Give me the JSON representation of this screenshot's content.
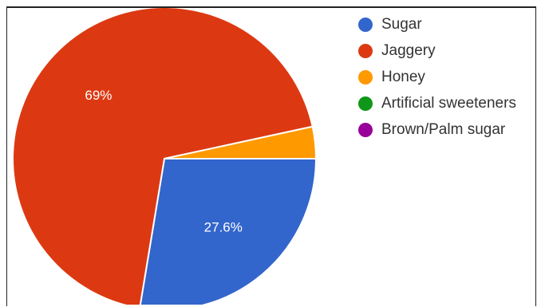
{
  "chart_data": {
    "type": "pie",
    "categories": [
      "Sugar",
      "Jaggery",
      "Honey",
      "Artificial sweeteners",
      "Brown/Palm sugar"
    ],
    "values": [
      27.6,
      69.0,
      3.4,
      0,
      0
    ],
    "data_labels": [
      "27.6%",
      "69%",
      "",
      "",
      ""
    ],
    "colors": [
      "#3366cc",
      "#dc3912",
      "#ff9900",
      "#109618",
      "#990099"
    ],
    "legend": {
      "position": "right",
      "entries": [
        "Sugar",
        "Jaggery",
        "Honey",
        "Artificial sweeteners",
        "Brown/Palm sugar"
      ]
    }
  }
}
